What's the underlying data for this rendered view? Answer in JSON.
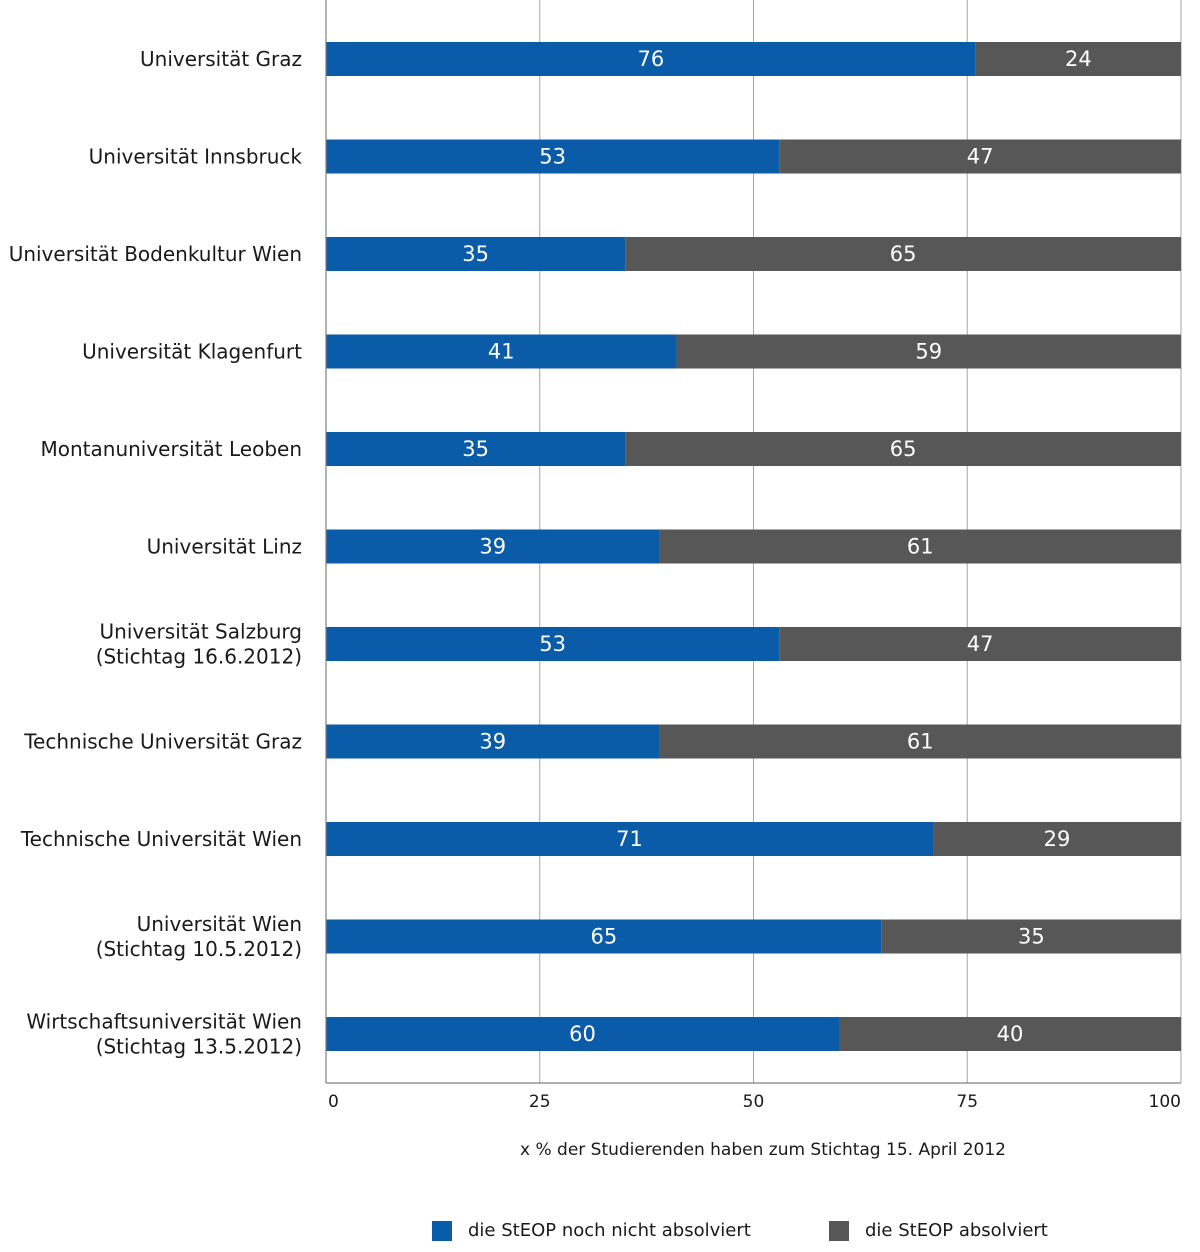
{
  "chart_data": {
    "type": "bar",
    "orientation": "horizontal",
    "stacked": true,
    "categories": [
      [
        "Universität Graz"
      ],
      [
        "Universität Innsbruck"
      ],
      [
        "Universität Bodenkultur Wien"
      ],
      [
        "Universität Klagenfurt"
      ],
      [
        "Montanuniversität Leoben"
      ],
      [
        "Universität Linz"
      ],
      [
        "Universität Salzburg",
        "(Stichtag 16.6.2012)"
      ],
      [
        "Technische Universität Graz"
      ],
      [
        "Technische Universität Wien"
      ],
      [
        "Universität Wien",
        "(Stichtag 10.5.2012)"
      ],
      [
        "Wirtschaftsuniversität Wien",
        "(Stichtag 13.5.2012)"
      ]
    ],
    "series": [
      {
        "name": "die StEOP noch nicht absolviert",
        "color": "#0a5ca8",
        "values": [
          76,
          53,
          35,
          41,
          35,
          39,
          53,
          39,
          71,
          65,
          60
        ]
      },
      {
        "name": "die StEOP absolviert",
        "color": "#575757",
        "values": [
          24,
          47,
          65,
          59,
          65,
          61,
          47,
          61,
          29,
          35,
          40
        ]
      }
    ],
    "xlabel": "x % der Studierenden haben zum Stichtag 15. April 2012",
    "xticks": [
      "0",
      "25",
      "50",
      "75",
      "100"
    ],
    "xlim": [
      0,
      100
    ],
    "grid": true,
    "legend_position": "bottom"
  }
}
